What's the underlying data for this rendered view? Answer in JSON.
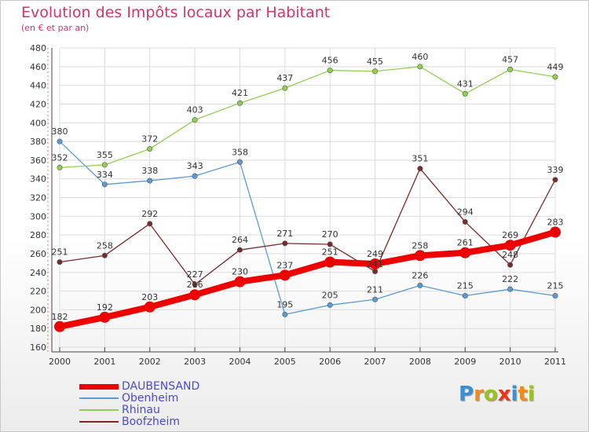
{
  "header": {
    "title": "Evolution des Impôts locaux par Habitant",
    "subtitle": "(en € et par an)"
  },
  "logo": {
    "text": "Proxiti",
    "letters": [
      {
        "ch": "P",
        "color": "#3b8fd4"
      },
      {
        "ch": "r",
        "color": "#f08a1c"
      },
      {
        "ch": "o",
        "color": "#9bc31c"
      },
      {
        "ch": "x",
        "color": "#e8361e"
      },
      {
        "ch": "i",
        "color": "#3b8fd4"
      },
      {
        "ch": "t",
        "color": "#f08a1c"
      },
      {
        "ch": "i",
        "color": "#9bc31c"
      }
    ]
  },
  "chart_data": {
    "type": "line",
    "title": "Evolution des Impôts locaux par Habitant",
    "subtitle": "(en € et par an)",
    "xlabel": "",
    "ylabel": "",
    "categories": [
      "2000",
      "2001",
      "2002",
      "2003",
      "2004",
      "2005",
      "2006",
      "2007",
      "2008",
      "2009",
      "2010",
      "2011"
    ],
    "ylim": [
      160,
      480
    ],
    "yticks": [
      160,
      180,
      200,
      220,
      240,
      260,
      280,
      300,
      320,
      340,
      360,
      380,
      400,
      420,
      440,
      460,
      480
    ],
    "grid": true,
    "legend_position": "bottom-left",
    "series": [
      {
        "name": "DAUBENSAND",
        "color": "#ee0000",
        "thick": true,
        "values": [
          182,
          192,
          203,
          216,
          230,
          237,
          251,
          249,
          258,
          261,
          269,
          283
        ],
        "labels": [
          "182",
          "192",
          "203",
          "",
          "230",
          "237",
          "251",
          "249",
          "258",
          "261",
          "269",
          "283"
        ]
      },
      {
        "name": "Obenheim",
        "color": "#5b9bd5",
        "thick": false,
        "values": [
          380,
          334,
          338,
          343,
          358,
          195,
          205,
          211,
          226,
          215,
          222,
          215
        ],
        "labels": [
          "380",
          "334",
          "338",
          "343",
          "358",
          "195",
          "205",
          "211",
          "226",
          "215",
          "222",
          "215"
        ]
      },
      {
        "name": "Rhinau",
        "color": "#8fd14f",
        "thick": false,
        "values": [
          352,
          355,
          372,
          403,
          421,
          437,
          456,
          455,
          460,
          431,
          457,
          449
        ],
        "labels": [
          "352",
          "355",
          "372",
          "403",
          "421",
          "437",
          "456",
          "455",
          "460",
          "431",
          "457",
          "449"
        ]
      },
      {
        "name": "Boofzheim",
        "color": "#7a2a2a",
        "thick": false,
        "values": [
          251,
          258,
          292,
          227,
          264,
          271,
          270,
          241,
          351,
          294,
          248,
          339
        ],
        "labels": [
          "251",
          "258",
          "292",
          "227",
          "264",
          "271",
          "270",
          "",
          "351",
          "294",
          "248",
          "339"
        ]
      }
    ],
    "overlap_labels": [
      "216",
      "241"
    ]
  }
}
